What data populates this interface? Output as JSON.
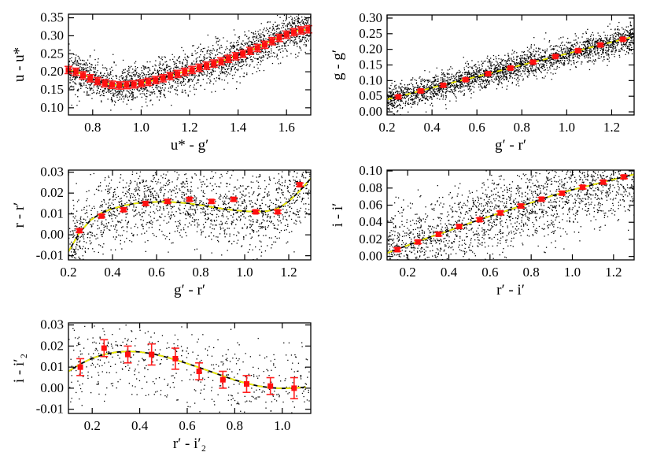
{
  "figure": {
    "background": "#ffffff"
  },
  "chart_data": [
    {
      "id": "panel-u",
      "type": "scatter",
      "xlabel": "u* - g′",
      "ylabel": "u - u*",
      "xlim": [
        0.7,
        1.7
      ],
      "ylim": [
        0.08,
        0.36
      ],
      "xticks": [
        0.8,
        1.0,
        1.2,
        1.4,
        1.6
      ],
      "xtick_labels": [
        "0.8",
        "1.0",
        "1.2",
        "1.4",
        "1.6"
      ],
      "yticks": [
        0.1,
        0.15,
        0.2,
        0.25,
        0.3,
        0.35
      ],
      "ytick_labels": [
        "0.10",
        "0.15",
        "0.20",
        "0.25",
        "0.30",
        "0.35"
      ],
      "fit_curve": {
        "x": [
          0.7,
          0.75,
          0.8,
          0.85,
          0.9,
          0.95,
          1.0,
          1.05,
          1.1,
          1.15,
          1.2,
          1.25,
          1.3,
          1.35,
          1.4,
          1.45,
          1.5,
          1.55,
          1.6,
          1.65,
          1.7
        ],
        "y": [
          0.205,
          0.195,
          0.18,
          0.168,
          0.162,
          0.162,
          0.168,
          0.176,
          0.185,
          0.195,
          0.204,
          0.214,
          0.224,
          0.234,
          0.246,
          0.259,
          0.274,
          0.29,
          0.305,
          0.315,
          0.318
        ]
      },
      "binned_points": {
        "x": [
          0.7,
          0.73,
          0.76,
          0.79,
          0.82,
          0.85,
          0.88,
          0.91,
          0.94,
          0.97,
          1.0,
          1.03,
          1.06,
          1.09,
          1.12,
          1.15,
          1.18,
          1.21,
          1.24,
          1.27,
          1.3,
          1.33,
          1.36,
          1.39,
          1.42,
          1.45,
          1.48,
          1.51,
          1.54,
          1.57,
          1.6,
          1.63,
          1.66,
          1.69
        ],
        "y": [
          0.205,
          0.2,
          0.19,
          0.182,
          0.174,
          0.168,
          0.164,
          0.162,
          0.163,
          0.165,
          0.168,
          0.172,
          0.177,
          0.182,
          0.188,
          0.194,
          0.2,
          0.205,
          0.211,
          0.217,
          0.223,
          0.229,
          0.236,
          0.243,
          0.25,
          0.258,
          0.266,
          0.275,
          0.285,
          0.294,
          0.303,
          0.31,
          0.315,
          0.318
        ],
        "yerr": [
          0.01,
          0.01,
          0.01,
          0.01,
          0.01,
          0.01,
          0.01,
          0.01,
          0.01,
          0.01,
          0.01,
          0.01,
          0.01,
          0.01,
          0.01,
          0.01,
          0.01,
          0.01,
          0.01,
          0.01,
          0.01,
          0.01,
          0.01,
          0.01,
          0.01,
          0.01,
          0.01,
          0.01,
          0.01,
          0.01,
          0.01,
          0.01,
          0.01,
          0.01
        ]
      },
      "scatter": {
        "count": 2400,
        "spread": 0.06
      }
    },
    {
      "id": "panel-g",
      "type": "scatter",
      "xlabel": "g′ - r′",
      "ylabel": "g - g′",
      "xlim": [
        0.2,
        1.3
      ],
      "ylim": [
        -0.01,
        0.31
      ],
      "xticks": [
        0.2,
        0.4,
        0.6,
        0.8,
        1.0,
        1.2
      ],
      "xtick_labels": [
        "0.2",
        "0.4",
        "0.6",
        "0.8",
        "1.0",
        "1.2"
      ],
      "yticks": [
        0.0,
        0.05,
        0.1,
        0.15,
        0.2,
        0.25,
        0.3
      ],
      "ytick_labels": [
        "0.00",
        "0.05",
        "0.10",
        "0.15",
        "0.20",
        "0.25",
        "0.30"
      ],
      "fit_curve": {
        "x": [
          0.2,
          0.3,
          0.4,
          0.5,
          0.6,
          0.7,
          0.8,
          0.9,
          1.0,
          1.1,
          1.2,
          1.3
        ],
        "y": [
          0.04,
          0.058,
          0.077,
          0.095,
          0.113,
          0.131,
          0.15,
          0.168,
          0.186,
          0.205,
          0.223,
          0.241
        ]
      },
      "binned_points": {
        "x": [
          0.25,
          0.35,
          0.45,
          0.55,
          0.65,
          0.75,
          0.85,
          0.95,
          1.05,
          1.15,
          1.25
        ],
        "y": [
          0.048,
          0.067,
          0.085,
          0.103,
          0.122,
          0.14,
          0.159,
          0.177,
          0.196,
          0.214,
          0.232
        ],
        "yerr": [
          0.004,
          0.004,
          0.004,
          0.004,
          0.004,
          0.004,
          0.004,
          0.004,
          0.004,
          0.004,
          0.004
        ]
      },
      "scatter": {
        "count": 2600,
        "spread": 0.05
      }
    },
    {
      "id": "panel-r",
      "type": "scatter",
      "xlabel": "g′ - r′",
      "ylabel": "r - r′",
      "xlim": [
        0.2,
        1.3
      ],
      "ylim": [
        -0.012,
        0.031
      ],
      "xticks": [
        0.2,
        0.4,
        0.6,
        0.8,
        1.0,
        1.2
      ],
      "xtick_labels": [
        "0.2",
        "0.4",
        "0.6",
        "0.8",
        "1.0",
        "1.2"
      ],
      "yticks": [
        -0.01,
        0.0,
        0.01,
        0.02,
        0.03
      ],
      "ytick_labels": [
        "-0.01",
        "0.00",
        "0.01",
        "0.02",
        "0.03"
      ],
      "fit_curve": {
        "x": [
          0.2,
          0.25,
          0.3,
          0.35,
          0.4,
          0.45,
          0.5,
          0.55,
          0.6,
          0.65,
          0.7,
          0.75,
          0.8,
          0.85,
          0.9,
          0.95,
          1.0,
          1.05,
          1.1,
          1.15,
          1.2,
          1.25,
          1.3
        ],
        "y": [
          -0.008,
          0.001,
          0.007,
          0.0105,
          0.0125,
          0.014,
          0.015,
          0.0155,
          0.0158,
          0.0158,
          0.0155,
          0.015,
          0.0142,
          0.0133,
          0.0125,
          0.0118,
          0.0113,
          0.0111,
          0.0113,
          0.0125,
          0.016,
          0.021,
          0.027
        ]
      },
      "binned_points": {
        "x": [
          0.25,
          0.35,
          0.45,
          0.55,
          0.65,
          0.75,
          0.85,
          0.95,
          1.05,
          1.15,
          1.25
        ],
        "y": [
          0.002,
          0.009,
          0.012,
          0.015,
          0.016,
          0.017,
          0.016,
          0.017,
          0.011,
          0.011,
          0.024
        ],
        "yerr": [
          0.0008,
          0.0008,
          0.0008,
          0.0008,
          0.0008,
          0.0008,
          0.0008,
          0.0008,
          0.0008,
          0.0008,
          0.0008
        ]
      },
      "scatter": {
        "count": 1700,
        "spread": 0.02
      }
    },
    {
      "id": "panel-i",
      "type": "scatter",
      "xlabel": "r′ - i′",
      "ylabel": "i - i′",
      "xlim": [
        0.1,
        1.3
      ],
      "ylim": [
        -0.004,
        0.101
      ],
      "xticks": [
        0.2,
        0.4,
        0.6,
        0.8,
        1.0,
        1.2
      ],
      "xtick_labels": [
        "0.2",
        "0.4",
        "0.6",
        "0.8",
        "1.0",
        "1.2"
      ],
      "yticks": [
        0.0,
        0.02,
        0.04,
        0.06,
        0.08,
        0.1
      ],
      "ytick_labels": [
        "0.00",
        "0.02",
        "0.04",
        "0.06",
        "0.08",
        "0.10"
      ],
      "fit_curve": {
        "x": [
          0.1,
          0.2,
          0.3,
          0.4,
          0.5,
          0.6,
          0.7,
          0.8,
          0.9,
          1.0,
          1.1,
          1.2,
          1.3
        ],
        "y": [
          0.004,
          0.013,
          0.022,
          0.03,
          0.039,
          0.047,
          0.055,
          0.063,
          0.071,
          0.078,
          0.084,
          0.09,
          0.096
        ]
      },
      "binned_points": {
        "x": [
          0.15,
          0.25,
          0.35,
          0.45,
          0.55,
          0.65,
          0.75,
          0.85,
          0.95,
          1.05,
          1.15,
          1.25
        ],
        "y": [
          0.008,
          0.017,
          0.026,
          0.035,
          0.043,
          0.051,
          0.059,
          0.067,
          0.074,
          0.081,
          0.087,
          0.093
        ],
        "yerr": [
          0.002,
          0.002,
          0.002,
          0.002,
          0.002,
          0.002,
          0.002,
          0.002,
          0.002,
          0.002,
          0.002,
          0.002
        ]
      },
      "scatter": {
        "count": 2000,
        "spread": 0.05
      }
    },
    {
      "id": "panel-i2",
      "type": "scatter",
      "xlabel": "r′ - i′₂",
      "ylabel": "i - i′₂",
      "xlim": [
        0.1,
        1.12
      ],
      "ylim": [
        -0.012,
        0.031
      ],
      "xticks": [
        0.2,
        0.4,
        0.6,
        0.8,
        1.0
      ],
      "xtick_labels": [
        "0.2",
        "0.4",
        "0.6",
        "0.8",
        "1.0"
      ],
      "yticks": [
        -0.01,
        0.0,
        0.01,
        0.02,
        0.03
      ],
      "ytick_labels": [
        "-0.01",
        "0.00",
        "0.01",
        "0.02",
        "0.03"
      ],
      "fit_curve": {
        "x": [
          0.1,
          0.15,
          0.2,
          0.25,
          0.3,
          0.35,
          0.4,
          0.45,
          0.5,
          0.55,
          0.6,
          0.65,
          0.7,
          0.75,
          0.8,
          0.85,
          0.9,
          0.95,
          1.0,
          1.05,
          1.1
        ],
        "y": [
          0.008,
          0.0115,
          0.0142,
          0.016,
          0.0171,
          0.0175,
          0.0172,
          0.0164,
          0.0151,
          0.0135,
          0.0117,
          0.0098,
          0.0078,
          0.0058,
          0.0039,
          0.0023,
          0.001,
          0.0002,
          -0.0001,
          0.0,
          0.0005
        ]
      },
      "binned_points": {
        "x": [
          0.15,
          0.25,
          0.35,
          0.45,
          0.55,
          0.65,
          0.75,
          0.85,
          0.95,
          1.05
        ],
        "y": [
          0.01,
          0.019,
          0.016,
          0.016,
          0.014,
          0.008,
          0.004,
          0.002,
          0.001,
          0.0
        ],
        "yerr": [
          0.004,
          0.004,
          0.004,
          0.005,
          0.005,
          0.004,
          0.004,
          0.004,
          0.004,
          0.005
        ]
      },
      "scatter": {
        "count": 550,
        "spread": 0.022
      }
    }
  ]
}
